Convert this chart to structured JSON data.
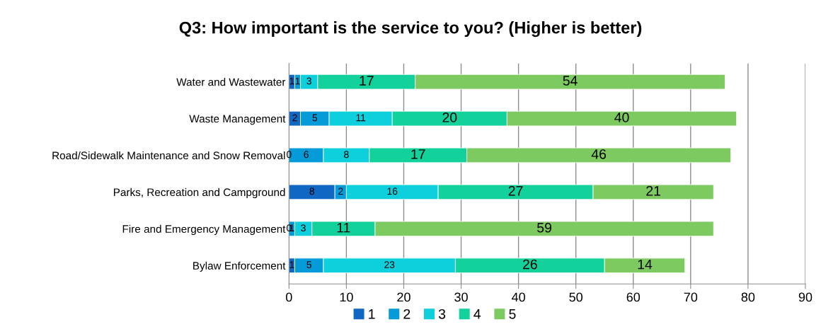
{
  "chart_data": {
    "type": "bar",
    "orientation": "horizontal",
    "stacked": true,
    "title": "Q3: How important is the service to you? (Higher is better)",
    "categories": [
      "Water and Wastewater",
      "Waste Management",
      "Road/Sidewalk Maintenance and Snow Removal",
      "Parks, Recreation and Campground",
      "Fire and Emergency Management",
      "Bylaw Enforcement"
    ],
    "series": [
      {
        "name": "1",
        "color": "#1068c2",
        "values": [
          1,
          2,
          0,
          8,
          0,
          1
        ]
      },
      {
        "name": "2",
        "color": "#059ad8",
        "values": [
          1,
          5,
          6,
          2,
          1,
          5
        ]
      },
      {
        "name": "3",
        "color": "#0dd0dc",
        "values": [
          3,
          11,
          8,
          16,
          3,
          23
        ]
      },
      {
        "name": "4",
        "color": "#13d19a",
        "values": [
          17,
          20,
          17,
          27,
          11,
          26
        ]
      },
      {
        "name": "5",
        "color": "#7dcb60",
        "values": [
          54,
          40,
          46,
          21,
          59,
          14
        ]
      }
    ],
    "xlim": [
      0,
      90
    ],
    "xticks": [
      0,
      10,
      20,
      30,
      40,
      50,
      60,
      70,
      80,
      90
    ],
    "grid": "x",
    "legend": "bottom",
    "data_labels": true
  }
}
